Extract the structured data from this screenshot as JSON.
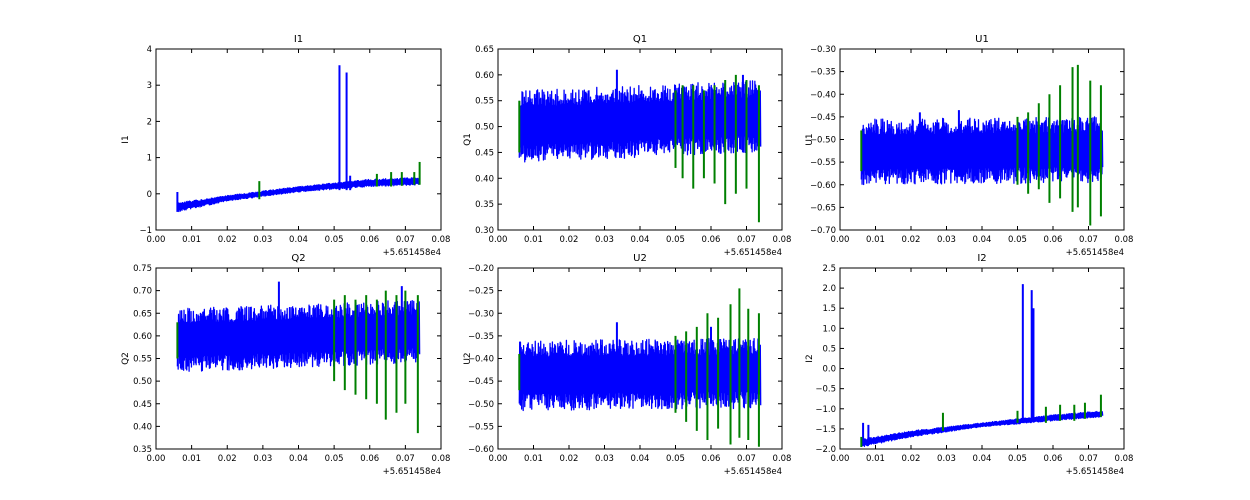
{
  "figure": {
    "series_colors": {
      "noise": "#0000ff",
      "signal": "#008000"
    }
  },
  "chart_data": [
    {
      "type": "line",
      "title": "I1",
      "ylabel": "I1",
      "xlabel": "",
      "xlim": [
        0.0,
        0.08
      ],
      "ylim": [
        -1,
        4
      ],
      "xticks": [
        "0.00",
        "0.01",
        "0.02",
        "0.03",
        "0.04",
        "0.05",
        "0.06",
        "0.07",
        "0.08"
      ],
      "yticks": [
        "−1",
        "0",
        "1",
        "2",
        "3",
        "4"
      ],
      "x_offset_label": "+5.651458e4",
      "grid": false,
      "legend": false,
      "series": [
        {
          "color": "blue",
          "band": {
            "x": [
              0.006,
              0.02,
              0.04,
              0.06,
              0.074
            ],
            "lo": [
              -0.5,
              -0.2,
              0.05,
              0.2,
              0.25
            ],
            "hi": [
              -0.25,
              -0.05,
              0.2,
              0.4,
              0.45
            ]
          },
          "spikes": [
            {
              "x": 0.006,
              "lo": -0.5,
              "hi": 0.05
            },
            {
              "x": 0.0515,
              "lo": 0.1,
              "hi": 3.55
            },
            {
              "x": 0.0535,
              "lo": 0.1,
              "hi": 3.35
            },
            {
              "x": 0.0545,
              "lo": 0.1,
              "hi": 0.5
            }
          ]
        },
        {
          "color": "green",
          "spikes": [
            {
              "x": 0.029,
              "lo": -0.15,
              "hi": 0.35
            },
            {
              "x": 0.062,
              "lo": 0.2,
              "hi": 0.55
            },
            {
              "x": 0.066,
              "lo": 0.2,
              "hi": 0.6
            },
            {
              "x": 0.069,
              "lo": 0.22,
              "hi": 0.6
            },
            {
              "x": 0.0725,
              "lo": 0.25,
              "hi": 0.6
            },
            {
              "x": 0.074,
              "lo": 0.25,
              "hi": 0.88
            }
          ]
        }
      ]
    },
    {
      "type": "line",
      "title": "Q1",
      "ylabel": "Q1",
      "xlabel": "",
      "xlim": [
        0.0,
        0.08
      ],
      "ylim": [
        0.3,
        0.65
      ],
      "xticks": [
        "0.00",
        "0.01",
        "0.02",
        "0.03",
        "0.04",
        "0.05",
        "0.06",
        "0.07",
        "0.08"
      ],
      "yticks": [
        "0.30",
        "0.35",
        "0.40",
        "0.45",
        "0.50",
        "0.55",
        "0.60",
        "0.65"
      ],
      "x_offset_label": "+5.651458e4",
      "grid": false,
      "legend": false,
      "series": [
        {
          "color": "blue",
          "band": {
            "x": [
              0.006,
              0.074
            ],
            "lo": [
              0.43,
              0.45
            ],
            "hi": [
              0.57,
              0.59
            ]
          },
          "spikes": [
            {
              "x": 0.0335,
              "lo": 0.45,
              "hi": 0.61
            },
            {
              "x": 0.069,
              "lo": 0.45,
              "hi": 0.6
            }
          ]
        },
        {
          "color": "green",
          "spikes": [
            {
              "x": 0.006,
              "lo": 0.45,
              "hi": 0.55
            },
            {
              "x": 0.05,
              "lo": 0.42,
              "hi": 0.57
            },
            {
              "x": 0.052,
              "lo": 0.4,
              "hi": 0.58
            },
            {
              "x": 0.055,
              "lo": 0.38,
              "hi": 0.58
            },
            {
              "x": 0.058,
              "lo": 0.4,
              "hi": 0.57
            },
            {
              "x": 0.061,
              "lo": 0.39,
              "hi": 0.58
            },
            {
              "x": 0.064,
              "lo": 0.35,
              "hi": 0.59
            },
            {
              "x": 0.067,
              "lo": 0.37,
              "hi": 0.6
            },
            {
              "x": 0.07,
              "lo": 0.38,
              "hi": 0.59
            },
            {
              "x": 0.0735,
              "lo": 0.315,
              "hi": 0.58
            }
          ]
        }
      ]
    },
    {
      "type": "line",
      "title": "U1",
      "ylabel": "U1",
      "xlabel": "",
      "xlim": [
        0.0,
        0.08
      ],
      "ylim": [
        -0.7,
        -0.3
      ],
      "xticks": [
        "0.00",
        "0.01",
        "0.02",
        "0.03",
        "0.04",
        "0.05",
        "0.06",
        "0.07",
        "0.08"
      ],
      "yticks": [
        "−0.70",
        "−0.65",
        "−0.60",
        "−0.55",
        "−0.50",
        "−0.45",
        "−0.40",
        "−0.35",
        "−0.30"
      ],
      "x_offset_label": "+5.651458e4",
      "grid": false,
      "legend": false,
      "series": [
        {
          "color": "blue",
          "band": {
            "x": [
              0.006,
              0.074
            ],
            "lo": [
              -0.6,
              -0.595
            ],
            "hi": [
              -0.455,
              -0.45
            ]
          },
          "spikes": [
            {
              "x": 0.0225,
              "lo": -0.58,
              "hi": -0.44
            },
            {
              "x": 0.0335,
              "lo": -0.58,
              "hi": -0.435
            }
          ]
        },
        {
          "color": "green",
          "spikes": [
            {
              "x": 0.006,
              "lo": -0.57,
              "hi": -0.48
            },
            {
              "x": 0.05,
              "lo": -0.6,
              "hi": -0.45
            },
            {
              "x": 0.053,
              "lo": -0.62,
              "hi": -0.44
            },
            {
              "x": 0.056,
              "lo": -0.61,
              "hi": -0.42
            },
            {
              "x": 0.059,
              "lo": -0.64,
              "hi": -0.4
            },
            {
              "x": 0.062,
              "lo": -0.63,
              "hi": -0.38
            },
            {
              "x": 0.0655,
              "lo": -0.66,
              "hi": -0.34
            },
            {
              "x": 0.067,
              "lo": -0.65,
              "hi": -0.335
            },
            {
              "x": 0.0705,
              "lo": -0.69,
              "hi": -0.37
            },
            {
              "x": 0.0735,
              "lo": -0.67,
              "hi": -0.38
            }
          ]
        }
      ]
    },
    {
      "type": "line",
      "title": "Q2",
      "ylabel": "Q2",
      "xlabel": "",
      "xlim": [
        0.0,
        0.08
      ],
      "ylim": [
        0.35,
        0.75
      ],
      "xticks": [
        "0.00",
        "0.01",
        "0.02",
        "0.03",
        "0.04",
        "0.05",
        "0.06",
        "0.07",
        "0.08"
      ],
      "yticks": [
        "0.35",
        "0.40",
        "0.45",
        "0.50",
        "0.55",
        "0.60",
        "0.65",
        "0.70",
        "0.75"
      ],
      "x_offset_label": "+5.651458e4",
      "grid": false,
      "legend": false,
      "series": [
        {
          "color": "blue",
          "band": {
            "x": [
              0.006,
              0.074
            ],
            "lo": [
              0.52,
              0.54
            ],
            "hi": [
              0.66,
              0.68
            ]
          },
          "spikes": [
            {
              "x": 0.0345,
              "lo": 0.55,
              "hi": 0.72
            },
            {
              "x": 0.069,
              "lo": 0.55,
              "hi": 0.71
            }
          ]
        },
        {
          "color": "green",
          "spikes": [
            {
              "x": 0.006,
              "lo": 0.55,
              "hi": 0.63
            },
            {
              "x": 0.05,
              "lo": 0.5,
              "hi": 0.68
            },
            {
              "x": 0.053,
              "lo": 0.48,
              "hi": 0.69
            },
            {
              "x": 0.056,
              "lo": 0.47,
              "hi": 0.68
            },
            {
              "x": 0.059,
              "lo": 0.46,
              "hi": 0.69
            },
            {
              "x": 0.062,
              "lo": 0.45,
              "hi": 0.68
            },
            {
              "x": 0.0645,
              "lo": 0.415,
              "hi": 0.7
            },
            {
              "x": 0.0675,
              "lo": 0.43,
              "hi": 0.69
            },
            {
              "x": 0.07,
              "lo": 0.45,
              "hi": 0.7
            },
            {
              "x": 0.0735,
              "lo": 0.385,
              "hi": 0.69
            }
          ]
        }
      ]
    },
    {
      "type": "line",
      "title": "U2",
      "ylabel": "U2",
      "xlabel": "",
      "xlim": [
        0.0,
        0.08
      ],
      "ylim": [
        -0.6,
        -0.2
      ],
      "xticks": [
        "0.00",
        "0.01",
        "0.02",
        "0.03",
        "0.04",
        "0.05",
        "0.06",
        "0.07",
        "0.08"
      ],
      "yticks": [
        "−0.60",
        "−0.55",
        "−0.50",
        "−0.45",
        "−0.40",
        "−0.35",
        "−0.30",
        "−0.25",
        "−0.20"
      ],
      "x_offset_label": "+5.651458e4",
      "grid": false,
      "legend": false,
      "series": [
        {
          "color": "blue",
          "band": {
            "x": [
              0.006,
              0.074
            ],
            "lo": [
              -0.515,
              -0.51
            ],
            "hi": [
              -0.36,
              -0.355
            ]
          },
          "spikes": [
            {
              "x": 0.0335,
              "lo": -0.5,
              "hi": -0.32
            },
            {
              "x": 0.06,
              "lo": -0.5,
              "hi": -0.33
            }
          ]
        },
        {
          "color": "green",
          "spikes": [
            {
              "x": 0.006,
              "lo": -0.47,
              "hi": -0.39
            },
            {
              "x": 0.05,
              "lo": -0.52,
              "hi": -0.35
            },
            {
              "x": 0.053,
              "lo": -0.54,
              "hi": -0.34
            },
            {
              "x": 0.056,
              "lo": -0.56,
              "hi": -0.33
            },
            {
              "x": 0.059,
              "lo": -0.58,
              "hi": -0.3
            },
            {
              "x": 0.062,
              "lo": -0.555,
              "hi": -0.31
            },
            {
              "x": 0.0655,
              "lo": -0.59,
              "hi": -0.28
            },
            {
              "x": 0.068,
              "lo": -0.575,
              "hi": -0.245
            },
            {
              "x": 0.0705,
              "lo": -0.58,
              "hi": -0.29
            },
            {
              "x": 0.0735,
              "lo": -0.595,
              "hi": -0.3
            }
          ]
        }
      ]
    },
    {
      "type": "line",
      "title": "I2",
      "ylabel": "I2",
      "xlabel": "",
      "xlim": [
        0.0,
        0.08
      ],
      "ylim": [
        -2.0,
        2.5
      ],
      "xticks": [
        "0.00",
        "0.01",
        "0.02",
        "0.03",
        "0.04",
        "0.05",
        "0.06",
        "0.07",
        "0.08"
      ],
      "yticks": [
        "−2.0",
        "−1.5",
        "−1.0",
        "−0.5",
        "0.0",
        "0.5",
        "1.0",
        "1.5",
        "2.0",
        "2.5"
      ],
      "x_offset_label": "+5.651458e4",
      "grid": false,
      "legend": false,
      "series": [
        {
          "color": "blue",
          "band": {
            "x": [
              0.006,
              0.02,
              0.04,
              0.06,
              0.074
            ],
            "lo": [
              -1.95,
              -1.7,
              -1.45,
              -1.3,
              -1.2
            ],
            "hi": [
              -1.75,
              -1.55,
              -1.35,
              -1.15,
              -1.05
            ]
          },
          "spikes": [
            {
              "x": 0.0065,
              "lo": -1.9,
              "hi": -1.35
            },
            {
              "x": 0.008,
              "lo": -1.85,
              "hi": -1.4
            },
            {
              "x": 0.0515,
              "lo": -1.3,
              "hi": 2.1
            },
            {
              "x": 0.054,
              "lo": -1.3,
              "hi": 1.95
            },
            {
              "x": 0.0545,
              "lo": -1.3,
              "hi": 1.5
            }
          ]
        },
        {
          "color": "green",
          "spikes": [
            {
              "x": 0.006,
              "lo": -1.95,
              "hi": -1.7
            },
            {
              "x": 0.029,
              "lo": -1.55,
              "hi": -1.1
            },
            {
              "x": 0.05,
              "lo": -1.35,
              "hi": -1.05
            },
            {
              "x": 0.058,
              "lo": -1.35,
              "hi": -0.95
            },
            {
              "x": 0.062,
              "lo": -1.3,
              "hi": -0.9
            },
            {
              "x": 0.066,
              "lo": -1.3,
              "hi": -0.9
            },
            {
              "x": 0.069,
              "lo": -1.25,
              "hi": -0.85
            },
            {
              "x": 0.0735,
              "lo": -1.2,
              "hi": -0.65
            }
          ]
        }
      ]
    }
  ]
}
